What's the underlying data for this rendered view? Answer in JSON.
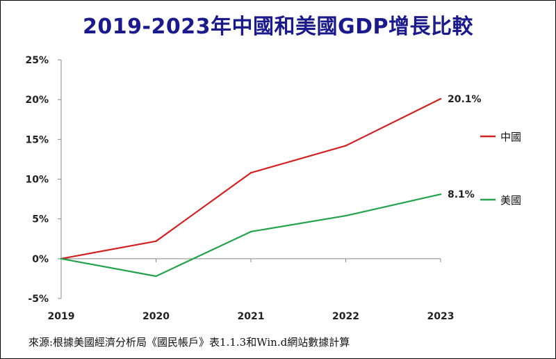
{
  "chart_data": {
    "type": "line",
    "title": "2019-2023年中國和美國GDP增長比較",
    "categories": [
      "2019",
      "2020",
      "2021",
      "2022",
      "2023"
    ],
    "series": [
      {
        "name": "中國",
        "color": "#d42020",
        "values": [
          0,
          2.2,
          10.8,
          14.2,
          20.1
        ],
        "end_label": "20.1%"
      },
      {
        "name": "美國",
        "color": "#22a34a",
        "values": [
          0,
          -2.2,
          3.4,
          5.4,
          8.1
        ],
        "end_label": "8.1%"
      }
    ],
    "ylim": [
      -5,
      25
    ],
    "yticks": [
      -5,
      0,
      5,
      10,
      15,
      20,
      25
    ],
    "ytick_labels": [
      "-5%",
      "0%",
      "5%",
      "10%",
      "15%",
      "20%",
      "25%"
    ],
    "xlabel": "",
    "ylabel": "",
    "grid": false,
    "legend_position": "right",
    "source": "來源:根據美國經濟分析局《國民帳戶》表1.1.3和Win.d網站數據計算"
  }
}
